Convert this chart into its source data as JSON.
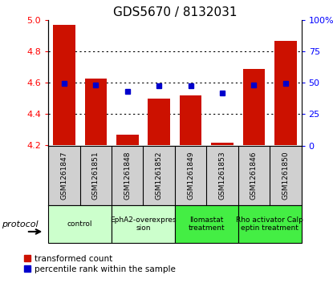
{
  "title": "GDS5670 / 8132031",
  "samples": [
    "GSM1261847",
    "GSM1261851",
    "GSM1261848",
    "GSM1261852",
    "GSM1261849",
    "GSM1261853",
    "GSM1261846",
    "GSM1261850"
  ],
  "transformed_counts": [
    4.97,
    4.63,
    4.27,
    4.5,
    4.52,
    4.22,
    4.69,
    4.87
  ],
  "percentile_values": [
    4.595,
    4.585,
    4.545,
    4.583,
    4.582,
    4.535,
    4.585,
    4.595
  ],
  "ylim_left": [
    4.2,
    5.0
  ],
  "ylim_right": [
    0,
    100
  ],
  "yticks_left": [
    4.2,
    4.4,
    4.6,
    4.8,
    5.0
  ],
  "yticks_right": [
    0,
    25,
    50,
    75,
    100
  ],
  "ytick_labels_right": [
    "0",
    "25",
    "50",
    "75",
    "100%"
  ],
  "bar_color": "#CC1100",
  "dot_color": "#0000CC",
  "bar_bottom": 4.2,
  "groups": [
    {
      "label": "control",
      "indices": [
        0,
        1
      ],
      "color": "#ccffcc"
    },
    {
      "label": "EphA2-overexpres\nsion",
      "indices": [
        2,
        3
      ],
      "color": "#ccffcc"
    },
    {
      "label": "Ilomastat\ntreatment",
      "indices": [
        4,
        5
      ],
      "color": "#44ee44"
    },
    {
      "label": "Rho activator Calp\neptin treatment",
      "indices": [
        6,
        7
      ],
      "color": "#44ee44"
    }
  ],
  "legend_bar_label": "transformed count",
  "legend_dot_label": "percentile rank within the sample",
  "protocol_label": "protocol"
}
